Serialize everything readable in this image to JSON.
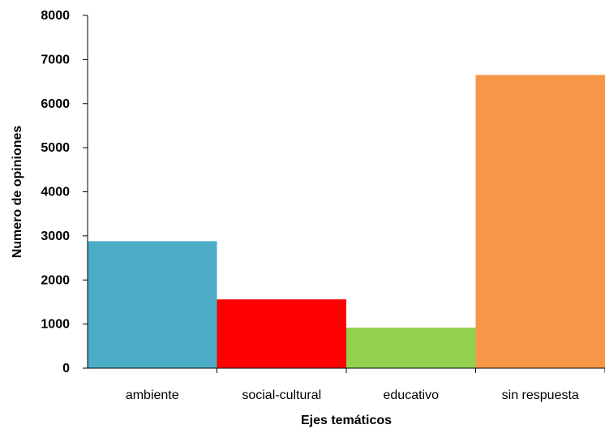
{
  "chart_data": {
    "type": "bar",
    "title": "",
    "xlabel": "Ejes temáticos",
    "ylabel": "Numero de opiniones",
    "categories": [
      "ambiente",
      "social-cultural",
      "educativo",
      "sin respuesta"
    ],
    "values": [
      2880,
      1560,
      920,
      6650
    ],
    "colors": [
      "#4bacc6",
      "#ff0000",
      "#92d050",
      "#f79646"
    ],
    "ylim": [
      0,
      8000
    ],
    "yticks": [
      "0",
      "1000",
      "2000",
      "3000",
      "4000",
      "5000",
      "6000",
      "7000",
      "8000"
    ],
    "grid": false,
    "legend": "none"
  }
}
